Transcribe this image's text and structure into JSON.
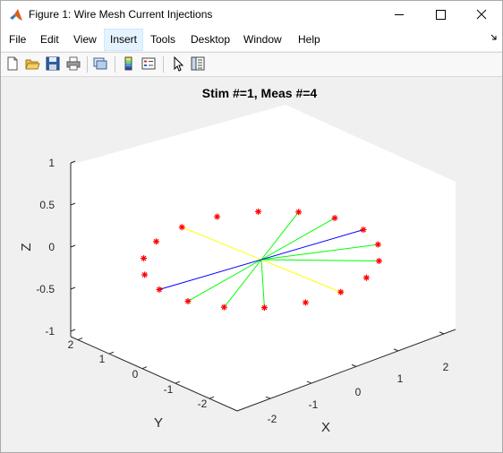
{
  "window": {
    "title": "Figure 1: Wire Mesh Current Injections"
  },
  "menu": [
    "File",
    "Edit",
    "View",
    "Insert",
    "Tools",
    "Desktop",
    "Window",
    "Help"
  ],
  "menu_active": "Insert",
  "toolbar": [
    "new-figure-icon",
    "open-icon",
    "save-icon",
    "print-icon",
    "link-icon",
    "colorbar-icon",
    "legend-icon",
    "pointer-icon",
    "property-inspector-icon"
  ],
  "colors": {
    "electrode": "#ff0000",
    "stim": "#0000ff",
    "meas": "#ffff00",
    "other": "#00ff00",
    "box": "#ffffff",
    "bg": "#f0f0f0"
  },
  "chart_data": {
    "type": "scatter3d",
    "title": "Stim #=1, Meas #=4",
    "xlabel": "X",
    "ylabel": "Y",
    "zlabel": "Z",
    "xlim": [
      -3,
      3
    ],
    "ylim": [
      -3,
      3
    ],
    "zlim": [
      -1,
      1
    ],
    "xticks": [
      "-2",
      "-1",
      "0",
      "1",
      "2"
    ],
    "yticks": [
      "2",
      "1",
      "0",
      "-1",
      "-2"
    ],
    "zticks": [
      "1",
      "0.5",
      "0",
      "-0.5",
      "-1"
    ],
    "center": [
      0,
      0,
      0
    ],
    "electrodes": [
      [
        2.5,
        0,
        0
      ],
      [
        2.35,
        0.85,
        0
      ],
      [
        1.9,
        1.6,
        0
      ],
      [
        1.25,
        2.15,
        0
      ],
      [
        0.45,
        2.45,
        0
      ],
      [
        -0.45,
        2.45,
        0
      ],
      [
        -1.25,
        2.15,
        0
      ],
      [
        -1.9,
        1.6,
        0
      ],
      [
        -2.35,
        0.85,
        0
      ],
      [
        -2.5,
        0,
        0
      ],
      [
        -2.35,
        -0.85,
        0
      ],
      [
        -1.9,
        -1.6,
        0
      ],
      [
        -1.25,
        -2.15,
        0
      ],
      [
        -0.45,
        -2.45,
        0
      ],
      [
        0.45,
        -2.45,
        0
      ],
      [
        1.25,
        -2.15,
        0
      ],
      [
        1.9,
        -1.6,
        0
      ],
      [
        2.35,
        -0.85,
        0
      ]
    ],
    "stim_electrodes": [
      5,
      14
    ],
    "meas_electrodes": [
      9,
      0
    ],
    "connected_electrodes": [
      2,
      3,
      4,
      12,
      13,
      15,
      16
    ]
  }
}
